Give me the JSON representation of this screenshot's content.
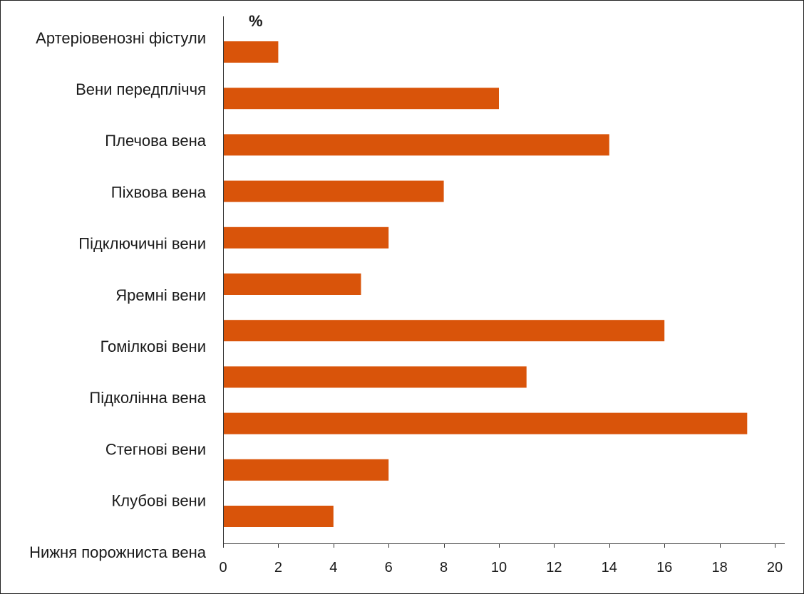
{
  "chart_data": {
    "type": "bar",
    "orientation": "horizontal",
    "unit_label": "%",
    "categories": [
      "Артеріовенозні фістули",
      "Вени передпліччя",
      "Плечова вена",
      "Піхвова вена",
      "Підключичні вени",
      "Яремні вени",
      "Гомілкові вени",
      "Підколінна вена",
      "Стегнові вени",
      "Клубові вени",
      "Нижня порожниста вена"
    ],
    "values": [
      2,
      10,
      14,
      8,
      6,
      5,
      16,
      11,
      19,
      6,
      4
    ],
    "xlim": [
      0,
      20
    ],
    "xticks": [
      0,
      2,
      4,
      6,
      8,
      10,
      12,
      14,
      16,
      18,
      20
    ],
    "xlabel": "",
    "ylabel": "",
    "grid": false,
    "legend": "none",
    "colors": {
      "bar": "#D9540A",
      "text": "#1a1a1a",
      "axis": "#333333"
    }
  }
}
